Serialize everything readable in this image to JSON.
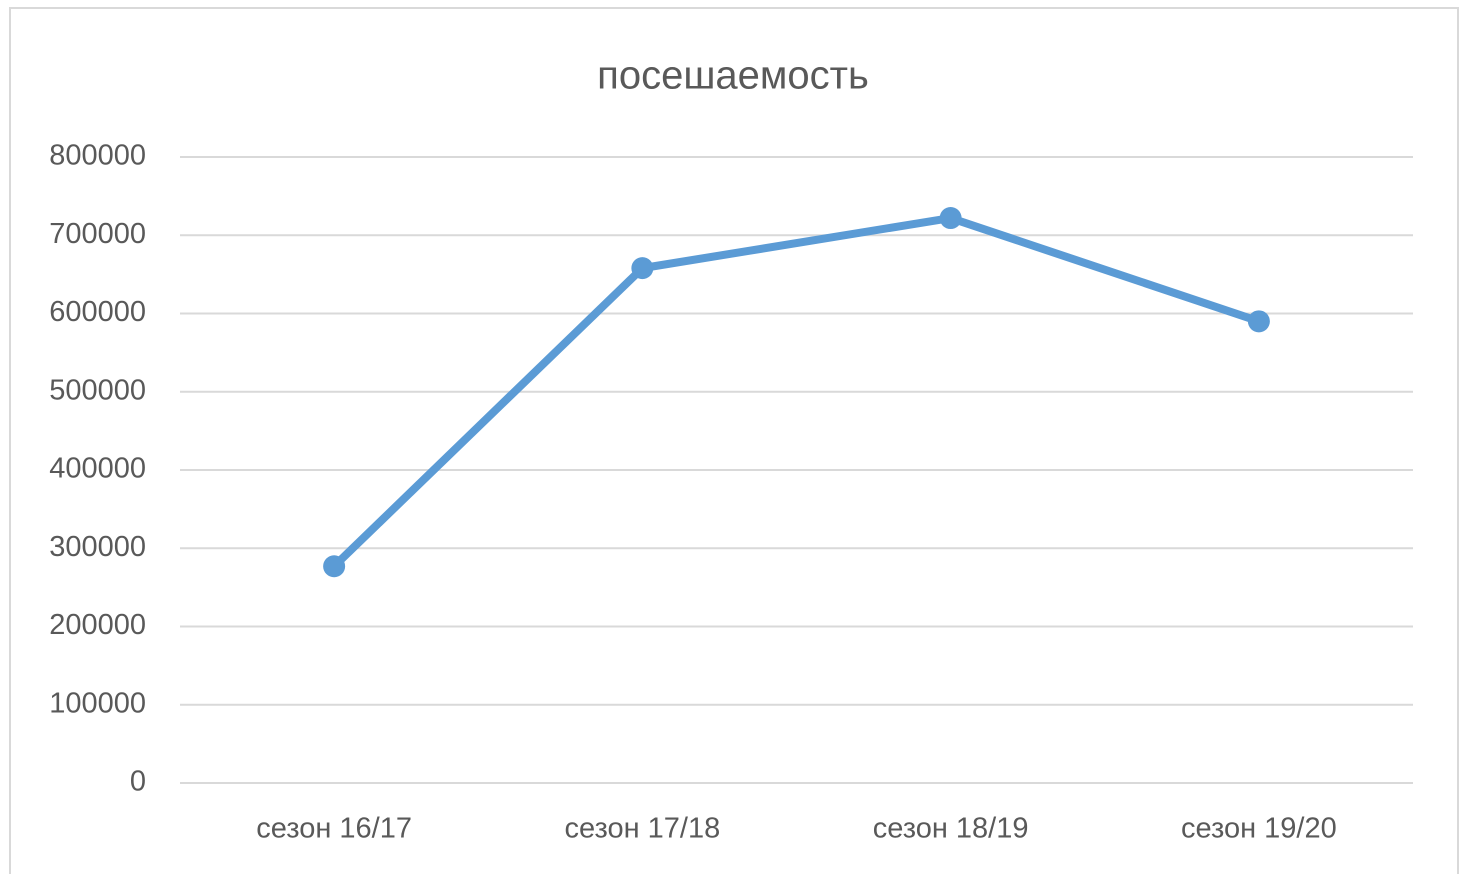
{
  "chart_data": {
    "type": "line",
    "title": "посешаемость",
    "categories": [
      "сезон 16/17",
      "сезон 17/18",
      "сезон 18/19",
      "сезон 19/20"
    ],
    "series": [
      {
        "name": "посешаемость",
        "color": "#5b9bd5",
        "values": [
          277000,
          658000,
          722000,
          590000
        ]
      }
    ],
    "ylim": [
      0,
      800000
    ],
    "yticks": [
      0,
      100000,
      200000,
      300000,
      400000,
      500000,
      600000,
      700000,
      800000
    ],
    "grid": true
  }
}
